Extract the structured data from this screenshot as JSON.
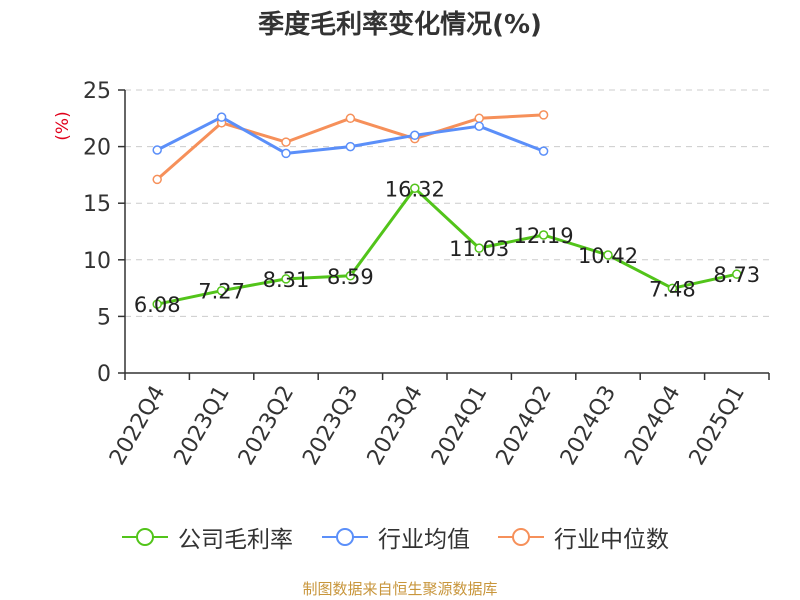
{
  "chart_data": {
    "type": "line",
    "title": "季度毛利率变化情况(%)",
    "ylabel": "(%)",
    "ylim": [
      0,
      25
    ],
    "yticks": [
      0,
      5,
      10,
      15,
      20,
      25
    ],
    "grid": true,
    "legend_position": "bottom",
    "categories": [
      "2022Q4",
      "2023Q1",
      "2023Q2",
      "2023Q3",
      "2023Q4",
      "2024Q1",
      "2024Q2",
      "2024Q3",
      "2024Q4",
      "2025Q1"
    ],
    "series": [
      {
        "name": "公司毛利率",
        "color": "#52c41a",
        "values": [
          6.08,
          7.27,
          8.31,
          8.59,
          16.32,
          11.03,
          12.19,
          10.42,
          7.48,
          8.73
        ],
        "labels": [
          "6.08",
          "7.27",
          "8.31",
          "8.59",
          "16.32",
          "11.03",
          "12.19",
          "10.42",
          "7.48",
          "8.73"
        ]
      },
      {
        "name": "行业均值",
        "color": "#5b8ff9",
        "values": [
          19.7,
          22.6,
          19.4,
          20.0,
          21.0,
          21.8,
          19.6,
          null,
          null,
          null
        ]
      },
      {
        "name": "行业中位数",
        "color": "#f6905a",
        "values": [
          17.1,
          22.1,
          20.4,
          22.5,
          20.7,
          22.5,
          22.8,
          null,
          null,
          null
        ]
      }
    ]
  },
  "source_text": "制图数据来自恒生聚源数据库",
  "colors": {
    "axis": "#333333",
    "grid": "#cccccc",
    "ylabel": "#e0001b",
    "source": "#c8963c"
  }
}
